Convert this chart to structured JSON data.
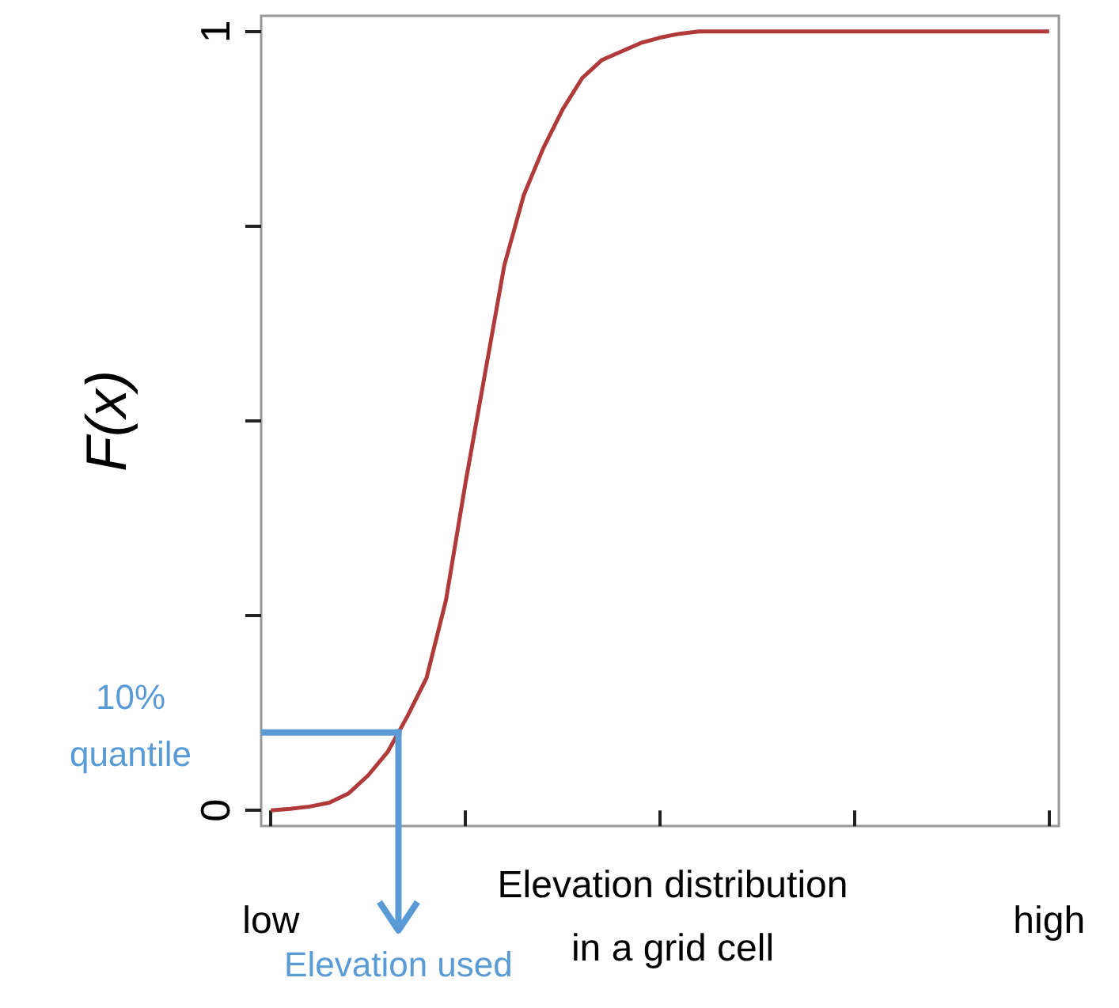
{
  "chart_data": {
    "type": "line",
    "xlabel": "Elevation distribution in a grid cell",
    "ylabel": "F(x)",
    "categories": [
      "low",
      null,
      null,
      null,
      null,
      null,
      null,
      null,
      null,
      null,
      null,
      null,
      null,
      null,
      null,
      null,
      null,
      null,
      null,
      null,
      null,
      null,
      null,
      null,
      null,
      null,
      null,
      null,
      null,
      null,
      null,
      null,
      null,
      null,
      null,
      null,
      null,
      null,
      null,
      null,
      "high"
    ],
    "series": [
      {
        "color": "#b03a3a",
        "values": [
          0,
          0.002,
          0.005,
          0.01,
          0.022,
          0.045,
          0.075,
          0.12,
          0.17,
          0.27,
          0.42,
          0.56,
          0.7,
          0.79,
          0.85,
          0.9,
          0.94,
          0.963,
          0.974,
          0.985,
          0.992,
          0.997,
          1,
          1,
          1,
          1,
          1,
          1,
          1,
          1,
          1,
          1,
          1,
          1,
          1,
          1,
          1,
          1,
          1,
          1,
          1
        ]
      }
    ],
    "ylim": [
      -0.02,
      1.02
    ],
    "yticks": [
      0,
      {
        "value": 0.25,
        "label": null
      },
      {
        "value": 0.5,
        "label": null
      },
      {
        "value": 0.75,
        "label": null
      },
      1
    ],
    "annotations": [
      "10% quantile",
      {
        "text": "Elevation used",
        "y": 0.1
      }
    ],
    "grid": false,
    "marker": "none",
    "line_style": "solid"
  }
}
